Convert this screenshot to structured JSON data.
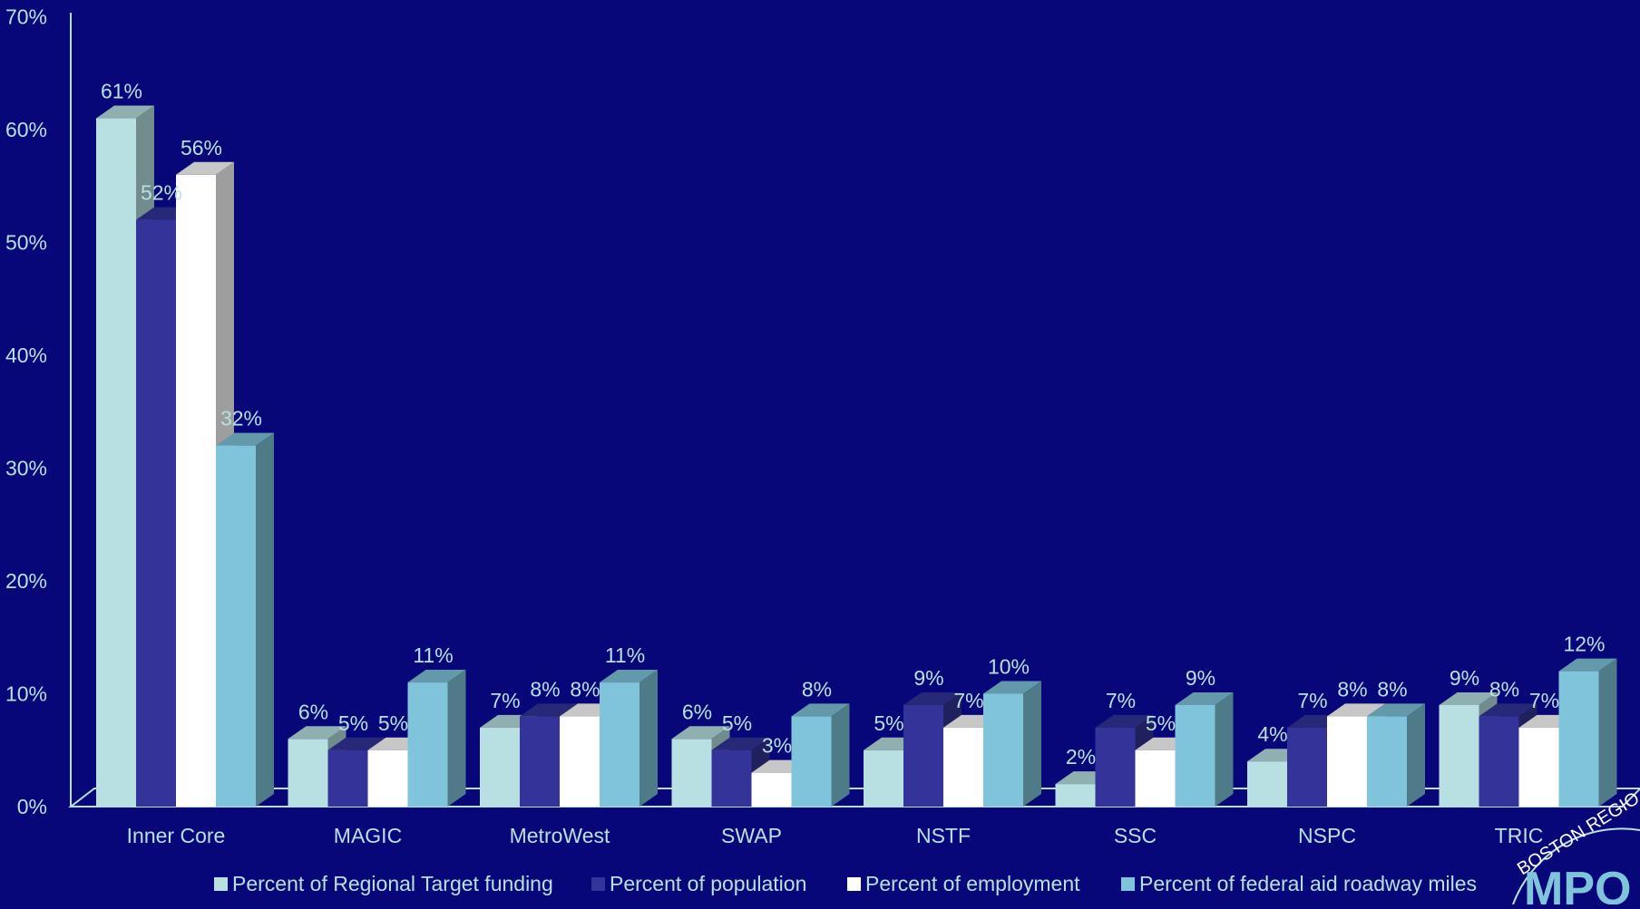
{
  "chart_data": {
    "type": "bar",
    "title": "",
    "xlabel": "",
    "ylabel": "",
    "ylim": [
      0,
      70
    ],
    "yticks": [
      0,
      10,
      20,
      30,
      40,
      50,
      60,
      70
    ],
    "ytick_labels": [
      "0%",
      "10%",
      "20%",
      "30%",
      "40%",
      "50%",
      "60%",
      "70%"
    ],
    "categories": [
      "Inner Core",
      "MAGIC",
      "MetroWest",
      "SWAP",
      "NSTF",
      "SSC",
      "NSPC",
      "TRIC"
    ],
    "series": [
      {
        "name": "Percent of Regional Target funding",
        "color": "#b8e0e2",
        "values": [
          61,
          6,
          7,
          6,
          5,
          2,
          4,
          9
        ],
        "labels": [
          "61%",
          "6%",
          "7%",
          "6%",
          "5%",
          "2%",
          "4%",
          "9%"
        ]
      },
      {
        "name": "Percent of population",
        "color": "#33339a",
        "values": [
          52,
          5,
          8,
          5,
          9,
          7,
          7,
          8
        ],
        "labels": [
          "52%",
          "5%",
          "8%",
          "5%",
          "9%",
          "7%",
          "7%",
          "8%"
        ]
      },
      {
        "name": "Percent of employment",
        "color": "#ffffff",
        "values": [
          56,
          5,
          8,
          3,
          7,
          5,
          8,
          7
        ],
        "labels": [
          "56%",
          "5%",
          "8%",
          "3%",
          "7%",
          "5%",
          "8%",
          "7%"
        ]
      },
      {
        "name": "Percent of federal aid roadway miles",
        "color": "#80c4dc",
        "values": [
          32,
          11,
          11,
          8,
          10,
          9,
          8,
          12
        ],
        "labels": [
          "32%",
          "11%",
          "11%",
          "8%",
          "10%",
          "9%",
          "8%",
          "12%"
        ]
      }
    ],
    "legend_position": "bottom",
    "grid": false,
    "style": "3d-clustered-column"
  },
  "colors": {
    "background": "#07077a",
    "axis": "#b8e0e2",
    "text": "#b8e0e2"
  },
  "logo": {
    "text": "BOSTON REGIO",
    "mark": "MPO"
  }
}
